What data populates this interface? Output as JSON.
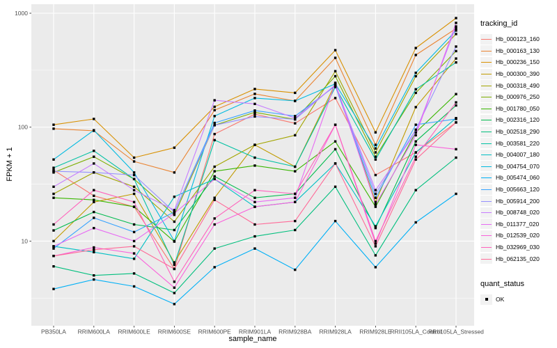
{
  "figure": {
    "y_axis_title": "FPKM + 1",
    "x_axis_title": "sample_name",
    "legend_tracking_title": "tracking_id",
    "legend_quant_title": "quant_status",
    "legend_quant_ok_label": "OK"
  },
  "style": {
    "panel_background": "#EBEBEB",
    "grid_color": "#FFFFFF",
    "axis_text_color": "#4D4D4D",
    "axis_title_color": "#000000",
    "tick_mark_color": "#333333",
    "point_color": "#000000",
    "legend_key_background": "#F2F2F2"
  },
  "chart_data": {
    "type": "line",
    "title": "",
    "xlabel": "sample_name",
    "ylabel": "FPKM + 1",
    "y_scale": "log10",
    "ylim": [
      1.8,
      1200
    ],
    "y_tick_values": [
      10,
      100,
      1000
    ],
    "y_tick_labels": [
      "10",
      "100",
      "1000"
    ],
    "y_minor_tick_values": [
      3.162,
      31.62,
      316.2
    ],
    "grid": true,
    "legend_position": "right",
    "marker": "black-square",
    "categories": [
      "PB350LA",
      "RRIM600LA",
      "RRIM600LE",
      "RRIM600SE",
      "RRIM600PE",
      "RRIM901LA",
      "RRIM928BA",
      "RRIM928LA",
      "RRIM928LE",
      "RRII105LA_Control",
      "RRII105LA_Stressed"
    ],
    "series": [
      {
        "name": "Hb_000123_160",
        "color": "#F8766D",
        "values": [
          42,
          25,
          20,
          5.7,
          87,
          130,
          108,
          180,
          38,
          60,
          110
        ]
      },
      {
        "name": "Hb_000163_130",
        "color": "#EA8331",
        "values": [
          97,
          93,
          50,
          40,
          141,
          196,
          170,
          406,
          70,
          430,
          733
        ]
      },
      {
        "name": "Hb_000236_150",
        "color": "#D89000",
        "values": [
          105,
          118,
          54,
          66,
          151,
          216,
          200,
          474,
          90,
          495,
          906
        ]
      },
      {
        "name": "Hb_000300_390",
        "color": "#C09B00",
        "values": [
          10,
          22,
          26,
          6.5,
          24,
          70,
          45,
          240,
          22,
          150,
          400
        ]
      },
      {
        "name": "Hb_000318_490",
        "color": "#A3A500",
        "values": [
          26,
          40,
          30,
          14.8,
          45,
          70,
          85,
          310,
          60,
          280,
          657
        ]
      },
      {
        "name": "Hb_000976_250",
        "color": "#7CAE00",
        "values": [
          40,
          55,
          35,
          17,
          104,
          135,
          117,
          280,
          55,
          200,
          465
        ]
      },
      {
        "name": "Hb_001780_050",
        "color": "#39B600",
        "values": [
          24,
          23,
          20,
          9.9,
          41,
          46,
          41,
          75,
          20,
          90,
          195
        ]
      },
      {
        "name": "Hb_002316_120",
        "color": "#00BB4E",
        "values": [
          12.4,
          18,
          14,
          12.5,
          37,
          24,
          26,
          64,
          13,
          75,
          155
        ]
      },
      {
        "name": "Hb_002518_290",
        "color": "#00BF7D",
        "values": [
          6,
          5,
          5.2,
          3.5,
          8.6,
          11,
          12.5,
          30,
          7.5,
          28,
          54
        ]
      },
      {
        "name": "Hb_003581_220",
        "color": "#00C1A3",
        "values": [
          44,
          62,
          35,
          6.2,
          77,
          54,
          45,
          225,
          52,
          215,
          370
        ]
      },
      {
        "name": "Hb_004007_180",
        "color": "#00BFC4",
        "values": [
          9,
          8,
          7,
          24.5,
          35,
          20,
          22,
          48,
          13.5,
          60,
          120
        ]
      },
      {
        "name": "Hb_004754_070",
        "color": "#00BAE0",
        "values": [
          52,
          94,
          40,
          10,
          125,
          180,
          170,
          240,
          65,
          300,
          705
        ]
      },
      {
        "name": "Hb_005474_060",
        "color": "#00B0F6",
        "values": [
          3.8,
          4.6,
          4,
          2.8,
          5.9,
          8.6,
          5.6,
          15,
          5.9,
          14.6,
          26
        ]
      },
      {
        "name": "Hb_005663_120",
        "color": "#35A2FF",
        "values": [
          8.6,
          16,
          12,
          18,
          109,
          140,
          125,
          230,
          24,
          105,
          118
        ]
      },
      {
        "name": "Hb_005914_200",
        "color": "#9590FF",
        "values": [
          41,
          40,
          38,
          18,
          104,
          124,
          117,
          235,
          26,
          95,
          510
        ]
      },
      {
        "name": "Hb_008748_020",
        "color": "#C77CFF",
        "values": [
          30,
          48,
          28,
          18.7,
          172,
          160,
          120,
          235,
          28,
          90,
          765
        ]
      },
      {
        "name": "Hb_011377_020",
        "color": "#E76BF3",
        "values": [
          9,
          13,
          10,
          17.5,
          35,
          22,
          24,
          245,
          21,
          85,
          822
        ]
      },
      {
        "name": "Hb_012539_020",
        "color": "#FA62DB",
        "values": [
          7.4,
          8.8,
          7.8,
          3.9,
          14,
          20,
          22,
          105,
          9.5,
          70,
          64
        ]
      },
      {
        "name": "Hb_032969_030",
        "color": "#FF62BC",
        "values": [
          14,
          28,
          22,
          4.4,
          15.8,
          28,
          26,
          105,
          10,
          55,
          165
        ]
      },
      {
        "name": "Hb_062135_020",
        "color": "#FF6A98",
        "values": [
          7.4,
          8.4,
          9,
          5.7,
          23,
          14,
          15,
          48,
          9,
          52,
          110
        ]
      }
    ],
    "quant_status": {
      "label": "OK",
      "marker": "black-square"
    }
  }
}
